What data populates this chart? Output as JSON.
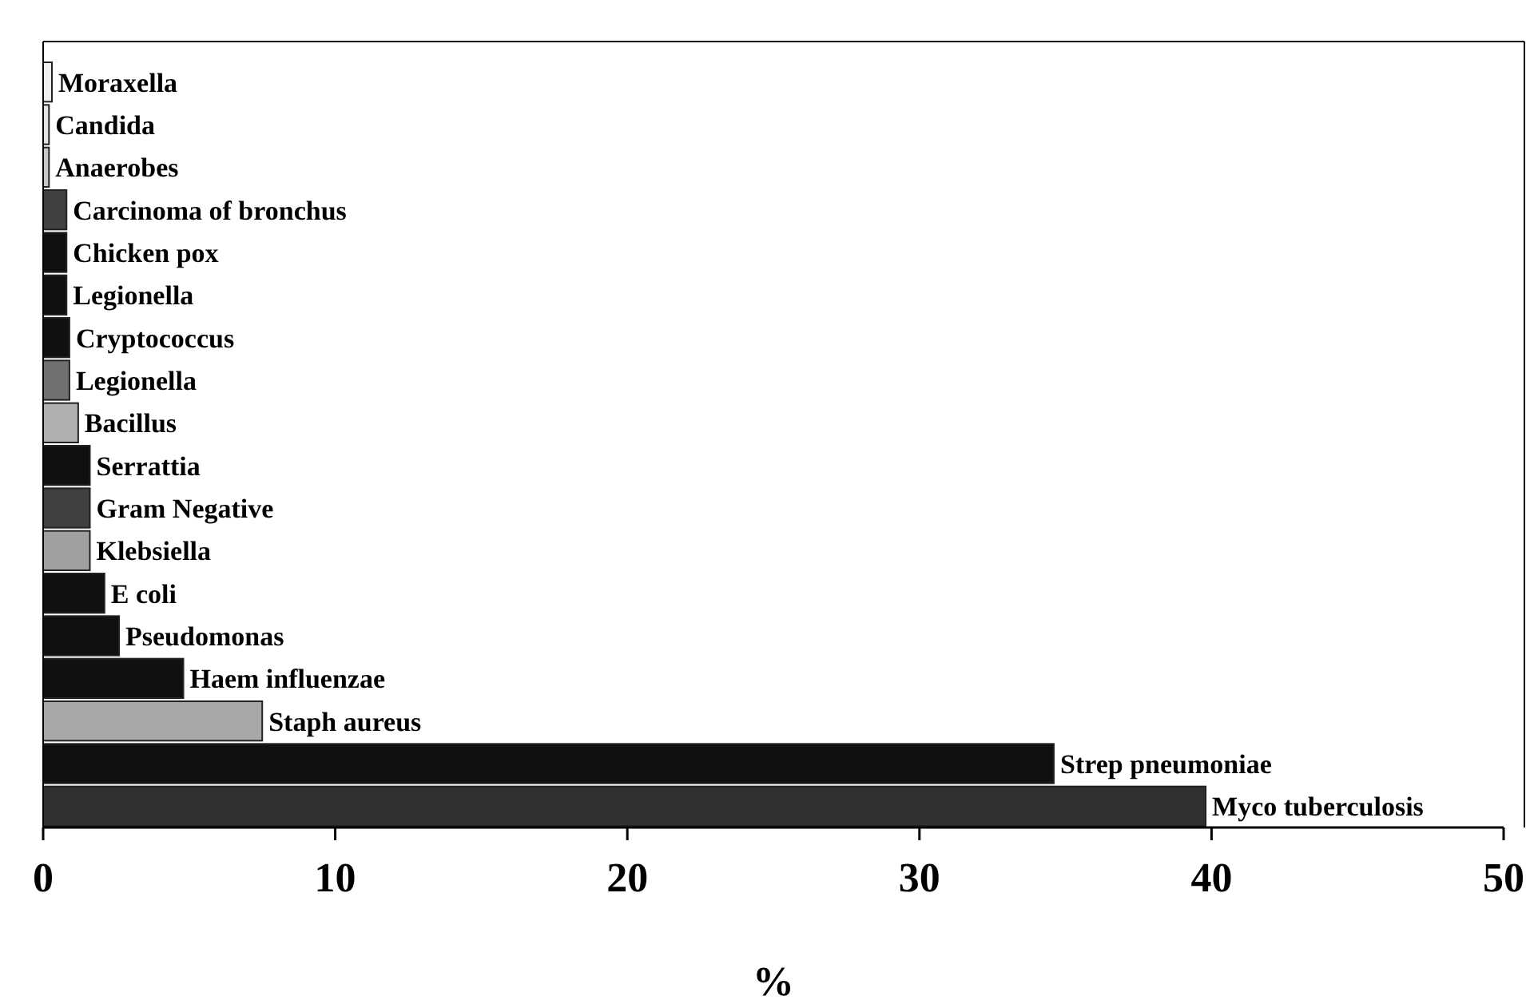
{
  "chart_data": {
    "type": "bar",
    "orientation": "horizontal",
    "xlabel": "%",
    "categories": [
      "Moraxella",
      "Candida",
      "Anaerobes",
      "Carcinoma of bronchus",
      "Chicken pox",
      "Legionella",
      "Cryptococcus",
      "Legionella",
      "Bacillus",
      "Serrattia",
      "Gram Negative",
      "Klebsiella",
      "E coli",
      "Pseudomonas",
      "Haem influenzae",
      "Staph aureus",
      "Strep pneumoniae",
      "Myco tuberculosis"
    ],
    "values": [
      0.3,
      0.2,
      0.2,
      0.8,
      0.8,
      0.8,
      0.9,
      0.9,
      1.2,
      1.6,
      1.6,
      1.6,
      2.1,
      2.6,
      4.8,
      7.5,
      34.6,
      39.8
    ],
    "colors": [
      "#f0f0f0",
      "#e4e4e4",
      "#c8c8c8",
      "#404040",
      "#101010",
      "#101010",
      "#101010",
      "#707070",
      "#b0b0b0",
      "#101010",
      "#404040",
      "#a0a0a0",
      "#101010",
      "#101010",
      "#101010",
      "#a8a8a8",
      "#101010",
      "#303030"
    ],
    "xlim": [
      0,
      50
    ],
    "xticks": [
      0,
      10,
      20,
      30,
      40,
      50
    ],
    "grid": false
  }
}
